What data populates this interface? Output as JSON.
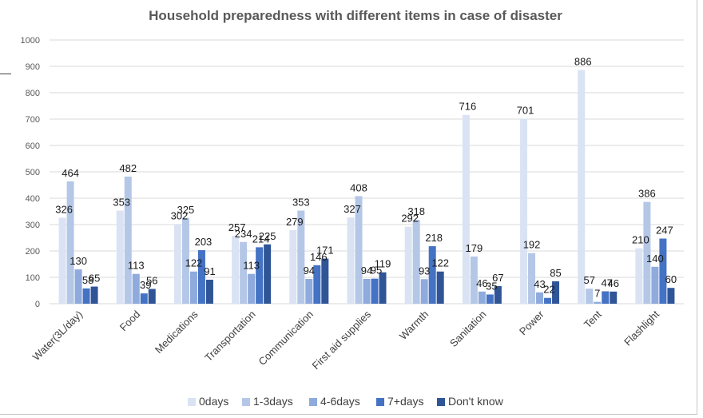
{
  "chart_data": {
    "type": "bar",
    "title": "Household preparedness with different items in case of disaster",
    "xlabel": "",
    "ylabel": "",
    "ylim": [
      0,
      1000
    ],
    "yticks": [
      0,
      100,
      200,
      300,
      400,
      500,
      600,
      700,
      800,
      900,
      1000
    ],
    "grid": true,
    "legend_position": "bottom",
    "categories": [
      "Water(3L/day)",
      "Food",
      "Medications",
      "Transportation",
      "Communication",
      "First aid supplies",
      "Warmth",
      "Sanitation",
      "Power",
      "Tent",
      "Flashlight"
    ],
    "series": [
      {
        "name": "0days",
        "color": "#dae3f3",
        "values": [
          326,
          353,
          302,
          257,
          279,
          327,
          292,
          716,
          701,
          886,
          210
        ]
      },
      {
        "name": "1-3days",
        "color": "#b4c7e7",
        "values": [
          464,
          482,
          325,
          234,
          353,
          408,
          318,
          179,
          192,
          57,
          386
        ]
      },
      {
        "name": "4-6days",
        "color": "#8faadc",
        "values": [
          130,
          113,
          122,
          113,
          94,
          94,
          93,
          46,
          43,
          7,
          140
        ]
      },
      {
        "name": "7+days",
        "color": "#4472c4",
        "values": [
          58,
          39,
          203,
          214,
          146,
          95,
          218,
          35,
          22,
          47,
          247
        ]
      },
      {
        "name": "Don't know",
        "color": "#2f5597",
        "values": [
          65,
          56,
          91,
          225,
          171,
          119,
          122,
          67,
          85,
          46,
          60
        ]
      }
    ]
  }
}
